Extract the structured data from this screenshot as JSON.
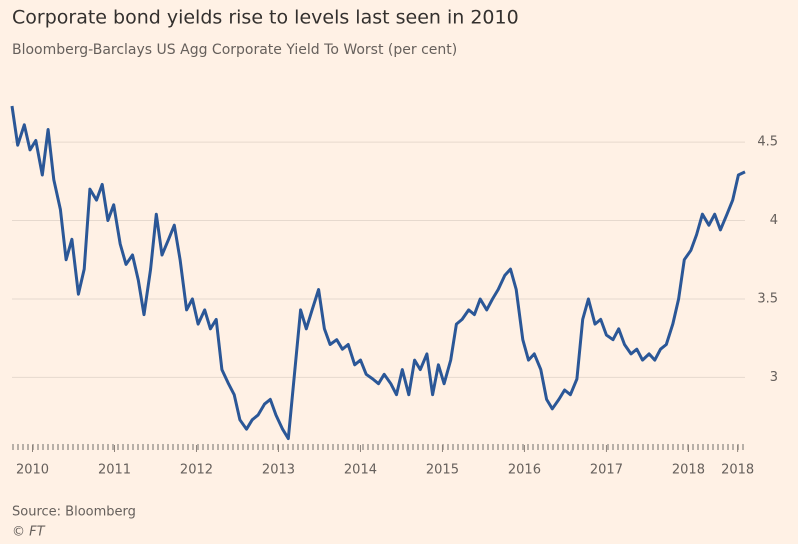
{
  "chart_data": {
    "type": "line",
    "title": "Corporate bond yields rise to levels last seen in 2010",
    "subtitle": "Bloomberg-Barclays US Agg Corporate Yield To Worst (per cent)",
    "source": "Source: Bloomberg",
    "credit": "© FT",
    "x": [
      2009.75,
      2009.82,
      2009.9,
      2009.97,
      2010.04,
      2010.12,
      2010.19,
      2010.26,
      2010.34,
      2010.41,
      2010.48,
      2010.56,
      2010.63,
      2010.7,
      2010.78,
      2010.85,
      2010.92,
      2010.99,
      2011.07,
      2011.14,
      2011.22,
      2011.29,
      2011.36,
      2011.44,
      2011.51,
      2011.58,
      2011.66,
      2011.73,
      2011.8,
      2011.88,
      2011.95,
      2012.02,
      2012.1,
      2012.17,
      2012.24,
      2012.31,
      2012.39,
      2012.46,
      2012.53,
      2012.61,
      2012.68,
      2012.75,
      2012.83,
      2012.9,
      2012.97,
      2013.05,
      2013.12,
      2013.19,
      2013.27,
      2013.34,
      2013.41,
      2013.49,
      2013.56,
      2013.63,
      2013.71,
      2013.78,
      2013.85,
      2013.93,
      2014.0,
      2014.07,
      2014.15,
      2014.22,
      2014.29,
      2014.37,
      2014.44,
      2014.51,
      2014.59,
      2014.66,
      2014.73,
      2014.81,
      2014.88,
      2014.95,
      2015.02,
      2015.1,
      2015.17,
      2015.24,
      2015.32,
      2015.39,
      2015.46,
      2015.54,
      2015.61,
      2015.68,
      2015.76,
      2015.83,
      2015.9,
      2015.98,
      2016.05,
      2016.12,
      2016.2,
      2016.27,
      2016.34,
      2016.42,
      2016.49,
      2016.56,
      2016.64,
      2016.71,
      2016.78,
      2016.86,
      2016.93,
      2017.0,
      2017.08,
      2017.15,
      2017.22,
      2017.3,
      2017.37,
      2017.44,
      2017.52,
      2017.59,
      2017.66,
      2017.73,
      2017.81,
      2017.88,
      2017.95,
      2018.03,
      2018.1,
      2018.17,
      2018.25,
      2018.32,
      2018.39,
      2018.47,
      2018.54,
      2018.61,
      2018.69
    ],
    "series": [
      {
        "color": "#2b5797",
        "values": [
          4.73,
          4.48,
          4.61,
          4.45,
          4.51,
          4.29,
          4.58,
          4.26,
          4.07,
          3.75,
          3.88,
          3.53,
          3.69,
          4.2,
          4.13,
          4.23,
          4.0,
          4.1,
          3.85,
          3.72,
          3.78,
          3.62,
          3.4,
          3.69,
          4.04,
          3.78,
          3.88,
          3.97,
          3.75,
          3.43,
          3.5,
          3.34,
          3.43,
          3.31,
          3.37,
          3.05,
          2.96,
          2.89,
          2.73,
          2.67,
          2.73,
          2.76,
          2.83,
          2.86,
          2.76,
          2.67,
          2.61,
          2.99,
          3.43,
          3.31,
          3.43,
          3.56,
          3.31,
          3.21,
          3.24,
          3.18,
          3.21,
          3.08,
          3.11,
          3.02,
          2.99,
          2.96,
          3.02,
          2.96,
          2.89,
          3.05,
          2.89,
          3.11,
          3.05,
          3.15,
          2.89,
          3.08,
          2.96,
          3.11,
          3.34,
          3.37,
          3.43,
          3.4,
          3.5,
          3.43,
          3.5,
          3.56,
          3.65,
          3.69,
          3.56,
          3.24,
          3.11,
          3.15,
          3.05,
          2.86,
          2.8,
          2.86,
          2.92,
          2.89,
          2.99,
          3.37,
          3.5,
          3.34,
          3.37,
          3.27,
          3.24,
          3.31,
          3.21,
          3.15,
          3.18,
          3.11,
          3.15,
          3.11,
          3.18,
          3.21,
          3.34,
          3.5,
          3.75,
          3.81,
          3.91,
          4.04,
          3.97,
          4.04,
          3.94,
          4.04,
          4.13,
          4.29,
          4.31
        ]
      }
    ],
    "xlim": [
      2009.75,
      2018.69
    ],
    "xticks": [
      2010,
      2011,
      2012,
      2013,
      2014,
      2015,
      2016,
      2017,
      2018,
      {
        "value": 2018.6,
        "label": "2018"
      }
    ],
    "ylim": [
      2.55,
      4.8
    ],
    "yticks": [
      3,
      3.5,
      4,
      4.5
    ],
    "grid": true
  }
}
